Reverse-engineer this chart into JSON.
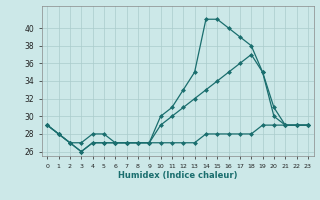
{
  "xlabel": "Humidex (Indice chaleur)",
  "bg_color": "#cce8e8",
  "grid_color": "#aacccc",
  "line_color": "#1a6e6e",
  "ylim": [
    25.5,
    42.5
  ],
  "xlim": [
    -0.5,
    23.5
  ],
  "yticks": [
    26,
    28,
    30,
    32,
    34,
    36,
    38,
    40
  ],
  "xticks": [
    0,
    1,
    2,
    3,
    4,
    5,
    6,
    7,
    8,
    9,
    10,
    11,
    12,
    13,
    14,
    15,
    16,
    17,
    18,
    19,
    20,
    21,
    22,
    23
  ],
  "xtick_labels": [
    "0",
    "1",
    "2",
    "3",
    "4",
    "5",
    "6",
    "7",
    "8",
    "9",
    "10",
    "11",
    "12",
    "13",
    "14",
    "15",
    "16",
    "17",
    "18",
    "19",
    "20",
    "21",
    "22",
    "23"
  ],
  "line1_x": [
    0,
    1,
    2,
    3,
    4,
    5,
    6,
    7,
    8,
    9,
    10,
    11,
    12,
    13,
    14,
    15,
    16,
    17,
    18,
    19,
    20,
    21,
    22,
    23
  ],
  "line1_y": [
    29,
    28,
    27,
    27,
    28,
    28,
    27,
    27,
    27,
    27,
    30,
    31,
    33,
    35,
    41,
    41,
    40,
    39,
    38,
    35,
    31,
    29,
    29,
    29
  ],
  "line2_x": [
    0,
    1,
    2,
    3,
    4,
    5,
    6,
    7,
    8,
    9,
    10,
    11,
    12,
    13,
    14,
    15,
    16,
    17,
    18,
    19,
    20,
    21,
    22,
    23
  ],
  "line2_y": [
    29,
    28,
    27,
    26,
    27,
    27,
    27,
    27,
    27,
    27,
    29,
    30,
    31,
    32,
    33,
    34,
    35,
    36,
    37,
    35,
    30,
    29,
    29,
    29
  ],
  "line3_x": [
    0,
    1,
    2,
    3,
    4,
    5,
    6,
    7,
    8,
    9,
    10,
    11,
    12,
    13,
    14,
    15,
    16,
    17,
    18,
    19,
    20,
    21,
    22,
    23
  ],
  "line3_y": [
    29,
    28,
    27,
    26,
    27,
    27,
    27,
    27,
    27,
    27,
    27,
    27,
    27,
    27,
    28,
    28,
    28,
    28,
    28,
    29,
    29,
    29,
    29,
    29
  ]
}
